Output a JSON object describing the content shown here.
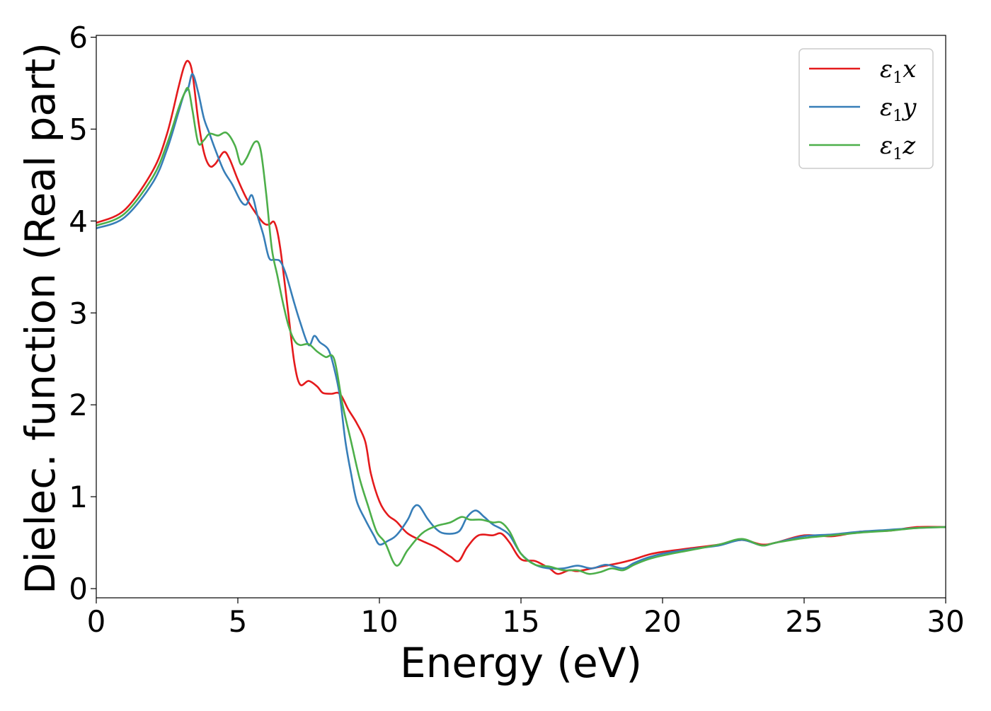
{
  "chart_data": {
    "type": "line",
    "title": "",
    "xlabel": "Energy (eV)",
    "ylabel": "Dielec. function (Real part)",
    "xlim": [
      0,
      30
    ],
    "ylim": [
      -0.1,
      6.02
    ],
    "xticks": [
      0,
      5,
      10,
      15,
      20,
      25,
      30
    ],
    "yticks": [
      0,
      1,
      2,
      3,
      4,
      5,
      6
    ],
    "grid": false,
    "legend_position": "top-right",
    "series": [
      {
        "name": "ε₁x",
        "legend_base": "ε",
        "legend_sub": "1",
        "legend_var": "x",
        "color": "#e41a1c",
        "x": [
          0,
          1,
          2,
          2.5,
          2.9,
          3.1,
          3.25,
          3.4,
          3.6,
          3.8,
          4.0,
          4.2,
          4.5,
          4.7,
          5.0,
          5.3,
          5.6,
          5.9,
          6.1,
          6.3,
          6.5,
          6.8,
          7.0,
          7.2,
          7.5,
          7.8,
          8.0,
          8.3,
          8.6,
          8.9,
          9.2,
          9.5,
          9.7,
          10.0,
          10.3,
          10.6,
          11.0,
          11.5,
          12.0,
          12.5,
          12.8,
          13.1,
          13.5,
          14.0,
          14.3,
          14.6,
          15.0,
          15.5,
          16.0,
          16.3,
          16.7,
          17.0,
          17.5,
          18.0,
          18.5,
          19.0,
          19.5,
          20.0,
          21.0,
          22.0,
          22.8,
          23.5,
          24.0,
          25.0,
          26.0,
          27.0,
          28.0,
          29.0,
          30.0
        ],
        "values": [
          3.98,
          4.12,
          4.55,
          4.95,
          5.45,
          5.68,
          5.74,
          5.6,
          5.1,
          4.75,
          4.6,
          4.62,
          4.75,
          4.68,
          4.45,
          4.25,
          4.1,
          3.98,
          3.96,
          3.98,
          3.7,
          2.95,
          2.45,
          2.22,
          2.26,
          2.2,
          2.13,
          2.12,
          2.12,
          1.95,
          1.8,
          1.6,
          1.25,
          0.95,
          0.8,
          0.73,
          0.6,
          0.52,
          0.45,
          0.35,
          0.3,
          0.45,
          0.58,
          0.58,
          0.6,
          0.5,
          0.32,
          0.3,
          0.22,
          0.16,
          0.2,
          0.19,
          0.22,
          0.25,
          0.28,
          0.32,
          0.37,
          0.4,
          0.44,
          0.48,
          0.53,
          0.48,
          0.5,
          0.58,
          0.57,
          0.62,
          0.63,
          0.67,
          0.67
        ]
      },
      {
        "name": "ε₁y",
        "legend_base": "ε",
        "legend_sub": "1",
        "legend_var": "y",
        "color": "#377eb8",
        "x": [
          0,
          1,
          2,
          2.5,
          2.9,
          3.1,
          3.25,
          3.4,
          3.6,
          3.8,
          4.0,
          4.2,
          4.5,
          4.8,
          5.1,
          5.3,
          5.5,
          5.7,
          5.9,
          6.1,
          6.3,
          6.5,
          6.7,
          7.0,
          7.2,
          7.5,
          7.7,
          7.9,
          8.2,
          8.4,
          8.6,
          8.8,
          9.0,
          9.2,
          9.5,
          9.8,
          10.0,
          10.3,
          10.6,
          11.0,
          11.2,
          11.4,
          11.7,
          12.0,
          12.3,
          12.8,
          13.1,
          13.4,
          13.7,
          14.0,
          14.3,
          14.6,
          15.0,
          15.5,
          16.0,
          16.5,
          17.0,
          17.5,
          18.0,
          18.6,
          19.0,
          19.5,
          20.0,
          21.0,
          22.0,
          22.8,
          23.5,
          24.0,
          25.0,
          26.0,
          27.0,
          28.0,
          29.0,
          30.0
        ],
        "values": [
          3.92,
          4.04,
          4.42,
          4.78,
          5.18,
          5.38,
          5.45,
          5.6,
          5.4,
          5.12,
          4.95,
          4.78,
          4.55,
          4.4,
          4.22,
          4.18,
          4.28,
          4.05,
          3.85,
          3.6,
          3.58,
          3.56,
          3.42,
          3.1,
          2.9,
          2.65,
          2.75,
          2.68,
          2.6,
          2.4,
          2.1,
          1.6,
          1.25,
          0.95,
          0.75,
          0.58,
          0.48,
          0.52,
          0.58,
          0.75,
          0.88,
          0.9,
          0.76,
          0.65,
          0.6,
          0.62,
          0.78,
          0.85,
          0.78,
          0.7,
          0.65,
          0.58,
          0.38,
          0.26,
          0.22,
          0.22,
          0.25,
          0.22,
          0.26,
          0.22,
          0.28,
          0.34,
          0.38,
          0.43,
          0.47,
          0.53,
          0.47,
          0.5,
          0.57,
          0.59,
          0.62,
          0.64,
          0.66,
          0.67
        ]
      },
      {
        "name": "ε₁z",
        "legend_base": "ε",
        "legend_sub": "1",
        "legend_var": "z",
        "color": "#4daf4a",
        "x": [
          0,
          1,
          2,
          2.5,
          2.9,
          3.1,
          3.25,
          3.4,
          3.6,
          3.8,
          4.0,
          4.3,
          4.6,
          4.9,
          5.1,
          5.3,
          5.6,
          5.8,
          6.0,
          6.2,
          6.4,
          6.6,
          6.8,
          7.0,
          7.2,
          7.5,
          7.8,
          8.1,
          8.4,
          8.7,
          9.0,
          9.3,
          9.6,
          9.9,
          10.2,
          10.6,
          11.0,
          11.5,
          12.0,
          12.5,
          12.9,
          13.2,
          13.6,
          14.0,
          14.3,
          14.6,
          15.0,
          15.5,
          16.0,
          16.5,
          17.0,
          17.4,
          17.8,
          18.2,
          18.6,
          19.0,
          19.5,
          20.0,
          21.0,
          22.0,
          22.8,
          23.5,
          24.0,
          25.0,
          26.0,
          27.0,
          28.0,
          29.0,
          30.0
        ],
        "values": [
          3.95,
          4.08,
          4.48,
          4.84,
          5.22,
          5.38,
          5.44,
          5.2,
          4.85,
          4.88,
          4.95,
          4.93,
          4.96,
          4.82,
          4.62,
          4.68,
          4.86,
          4.78,
          4.3,
          3.7,
          3.4,
          3.1,
          2.85,
          2.7,
          2.65,
          2.66,
          2.58,
          2.52,
          2.5,
          2.0,
          1.6,
          1.2,
          0.9,
          0.62,
          0.5,
          0.25,
          0.42,
          0.6,
          0.68,
          0.72,
          0.78,
          0.75,
          0.75,
          0.72,
          0.72,
          0.62,
          0.38,
          0.26,
          0.24,
          0.2,
          0.2,
          0.16,
          0.18,
          0.22,
          0.2,
          0.26,
          0.32,
          0.36,
          0.42,
          0.48,
          0.54,
          0.47,
          0.5,
          0.55,
          0.58,
          0.61,
          0.63,
          0.66,
          0.67
        ]
      }
    ]
  }
}
